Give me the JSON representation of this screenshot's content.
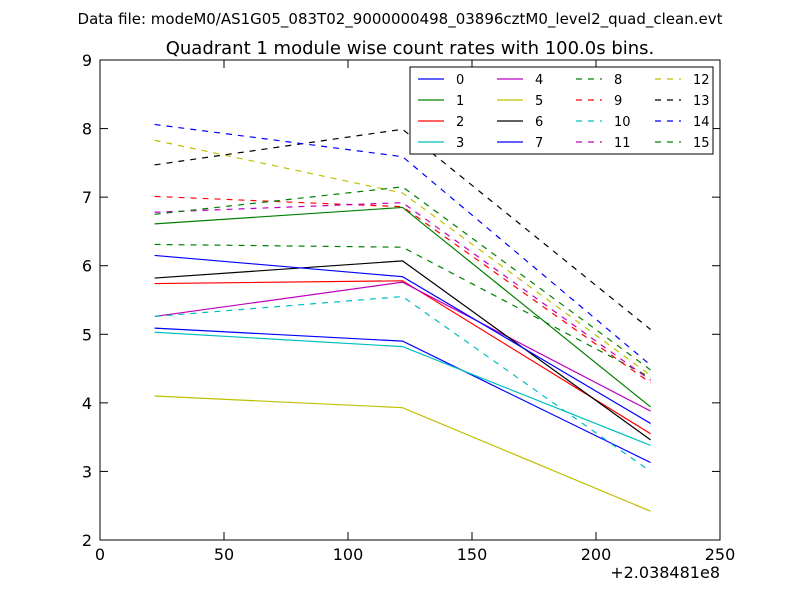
{
  "figure": {
    "supertitle": "Data file: modeM0/AS1G05_083T02_9000000498_03896cztM0_level2_quad_clean.evt"
  },
  "chart_data": {
    "type": "line",
    "title": "Quadrant 1 module wise count rates with 100.0s bins.",
    "xlabel": "",
    "ylabel": "",
    "x_offset_label": "+2.038481e8",
    "xlim": [
      0,
      250
    ],
    "ylim": [
      2,
      9
    ],
    "x_ticks": [
      0,
      50,
      100,
      150,
      200,
      250
    ],
    "y_ticks": [
      2,
      3,
      4,
      5,
      6,
      7,
      8,
      9
    ],
    "grid": false,
    "legend_position": "top-right",
    "legend_columns": 4,
    "x": [
      22,
      122,
      222
    ],
    "series": [
      {
        "name": "0",
        "color": "#0000ff",
        "dash": "solid",
        "values": [
          5.09,
          4.9,
          3.13
        ]
      },
      {
        "name": "1",
        "color": "#008000",
        "dash": "solid",
        "values": [
          6.61,
          6.85,
          3.94
        ]
      },
      {
        "name": "2",
        "color": "#ff0000",
        "dash": "solid",
        "values": [
          5.74,
          5.78,
          3.55
        ]
      },
      {
        "name": "3",
        "color": "#00bfbf",
        "dash": "solid",
        "values": [
          5.03,
          4.82,
          3.38
        ]
      },
      {
        "name": "4",
        "color": "#bf00bf",
        "dash": "solid",
        "values": [
          5.26,
          5.76,
          3.88
        ]
      },
      {
        "name": "5",
        "color": "#bfbf00",
        "dash": "solid",
        "values": [
          4.1,
          3.93,
          2.42
        ]
      },
      {
        "name": "6",
        "color": "#000000",
        "dash": "solid",
        "values": [
          5.82,
          6.07,
          3.46
        ]
      },
      {
        "name": "7",
        "color": "#0000ff",
        "dash": "solid",
        "values": [
          6.15,
          5.84,
          3.7
        ]
      },
      {
        "name": "8",
        "color": "#008000",
        "dash": "dashed",
        "values": [
          6.31,
          6.27,
          4.37
        ]
      },
      {
        "name": "9",
        "color": "#ff0000",
        "dash": "dashed",
        "values": [
          7.01,
          6.86,
          4.29
        ]
      },
      {
        "name": "10",
        "color": "#00bfbf",
        "dash": "dashed",
        "values": [
          5.26,
          5.55,
          3.0
        ]
      },
      {
        "name": "11",
        "color": "#bf00bf",
        "dash": "dashed",
        "values": [
          6.78,
          6.92,
          4.33
        ]
      },
      {
        "name": "12",
        "color": "#bfbf00",
        "dash": "dashed",
        "values": [
          7.83,
          7.06,
          4.4
        ]
      },
      {
        "name": "13",
        "color": "#000000",
        "dash": "dashed",
        "values": [
          7.47,
          7.99,
          5.07
        ]
      },
      {
        "name": "14",
        "color": "#0000ff",
        "dash": "dashed",
        "values": [
          8.06,
          7.59,
          4.55
        ]
      },
      {
        "name": "15",
        "color": "#008000",
        "dash": "dashed",
        "values": [
          6.75,
          7.15,
          4.48
        ]
      }
    ]
  }
}
